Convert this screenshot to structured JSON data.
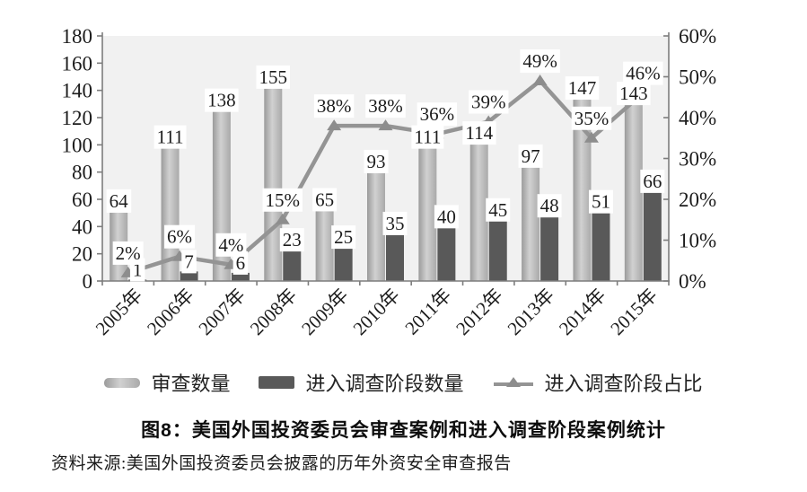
{
  "figure": {
    "caption": "图8：美国外国投资委员会审查案例和进入调查阶段案例统计",
    "source": "资料来源:美国外国投资委员会披露的历年外资安全审查报告"
  },
  "chart_data": {
    "type": "combo-bar-line",
    "categories": [
      "2005年",
      "2006年",
      "2007年",
      "2008年",
      "2009年",
      "2010年",
      "2011年",
      "2012年",
      "2013年",
      "2014年",
      "2015年"
    ],
    "series": [
      {
        "name": "审查数量",
        "type": "bar",
        "axis": "left",
        "values": [
          64,
          111,
          138,
          155,
          65,
          93,
          111,
          114,
          97,
          147,
          143
        ],
        "color_stops": [
          "#9b9b9b",
          "#d1d1d1",
          "#a9a9a9"
        ]
      },
      {
        "name": "进入调查阶段数量",
        "type": "bar",
        "axis": "left",
        "values": [
          1,
          7,
          6,
          23,
          25,
          35,
          40,
          45,
          48,
          51,
          66
        ],
        "color": "#595959"
      },
      {
        "name": "进入调查阶段占比",
        "type": "line",
        "axis": "right",
        "values": [
          2,
          6,
          4,
          15,
          38,
          38,
          36,
          39,
          49,
          35,
          46
        ],
        "labels": [
          "2%",
          "6%",
          "4%",
          "15%",
          "38%",
          "38%",
          "36%",
          "39%",
          "49%",
          "35%",
          "46%"
        ],
        "color": "#949494",
        "marker": "triangle",
        "marker_color": "#8d8d8d"
      }
    ],
    "left_axis": {
      "min": 0,
      "max": 180,
      "step": 20,
      "ticks": [
        "0",
        "20",
        "40",
        "60",
        "80",
        "100",
        "120",
        "140",
        "160",
        "180"
      ]
    },
    "right_axis": {
      "min": 0,
      "max": 60,
      "step": 10,
      "ticks": [
        "0%",
        "10%",
        "20%",
        "30%",
        "40%",
        "50%",
        "60%"
      ]
    },
    "plot_bg": "#f1f1f1",
    "axis_color": "#7d7d7d",
    "label_bg": "#ffffff",
    "text_color": "#1c1c1c",
    "gridlines": false,
    "legend_position": "bottom"
  }
}
